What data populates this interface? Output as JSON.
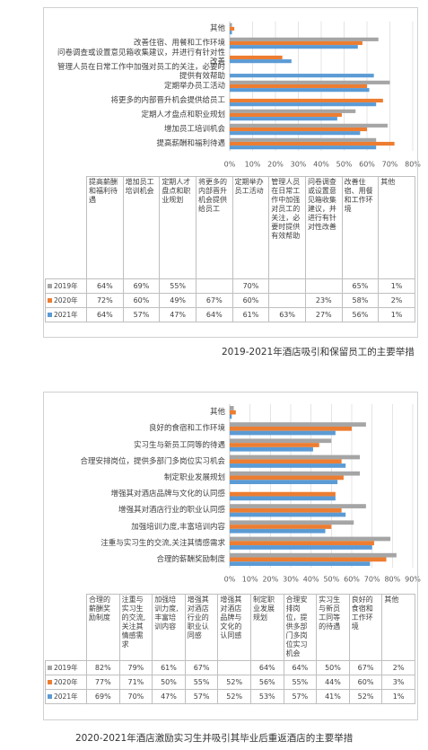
{
  "chart_data": [
    {
      "type": "bar",
      "orientation": "horizontal",
      "title": "2019-2021年酒店吸引和保留员工的主要举措",
      "categories": [
        "提高薪酬和福利待遇",
        "增加员工培训机会",
        "定期人才盘点和职业规划",
        "将更多的内部晋升机会提供给员工",
        "定期举办员工活动",
        "管理人员在日常工作中加强对员工的关注，必要时提供有效帮助",
        "问卷调查或设置意见箱收集建议，并进行有针对性改善",
        "改善住宿、用餐和工作环境",
        "其他"
      ],
      "series": [
        {
          "name": "2019年",
          "color": "#a5a5a5",
          "values": [
            64,
            69,
            55,
            null,
            70,
            null,
            null,
            65,
            1
          ],
          "value_labels": [
            "64%",
            "69%",
            "55%",
            null,
            "70%",
            null,
            null,
            "65%",
            "1%"
          ]
        },
        {
          "name": "2020年",
          "color": "#ed7d31",
          "values": [
            72,
            60,
            49,
            67,
            60,
            null,
            23,
            58,
            2
          ],
          "value_labels": [
            "72%",
            "60%",
            "49%",
            "67%",
            "60%",
            null,
            "23%",
            "58%",
            "2%"
          ]
        },
        {
          "name": "2021年",
          "color": "#5b9bd5",
          "values": [
            64,
            57,
            47,
            64,
            61,
            63,
            27,
            56,
            1
          ],
          "value_labels": [
            "64%",
            "57%",
            "47%",
            "64%",
            "61%",
            "63%",
            "27%",
            "56%",
            "1%"
          ]
        }
      ],
      "xlim": [
        0,
        80
      ],
      "xticks": [
        {
          "value": 0,
          "label": "0%"
        },
        {
          "value": 10,
          "label": "10%"
        },
        {
          "value": 20,
          "label": "20%"
        },
        {
          "value": 30,
          "label": "30%"
        },
        {
          "value": 40,
          "label": "40%"
        },
        {
          "value": 50,
          "label": "50%"
        },
        {
          "value": 60,
          "label": "60%"
        },
        {
          "value": 70,
          "label": "70%"
        },
        {
          "value": 80,
          "label": "80%"
        }
      ],
      "grid": true
    },
    {
      "type": "bar",
      "orientation": "horizontal",
      "title": "2020-2021年酒店激励实习生并吸引其毕业后重返酒店的主要举措",
      "categories": [
        "合理的薪酬奖励制度",
        "注重与实习生的交流,关注其情感需求",
        "加强培训力度,丰富培训内容",
        "增强其对酒店行业的职业认同感",
        "增强其对酒店品牌与文化的认同感",
        "制定职业发展规划",
        "合理安排岗位，提供多部门多岗位实习机会",
        "实习生与新员工同等的待遇",
        "良好的食宿和工作环境",
        "其他"
      ],
      "series": [
        {
          "name": "2019年",
          "color": "#a5a5a5",
          "values": [
            82,
            79,
            61,
            67,
            null,
            64,
            64,
            50,
            67,
            2
          ],
          "value_labels": [
            "82%",
            "79%",
            "61%",
            "67%",
            null,
            "64%",
            "64%",
            "50%",
            "67%",
            "2%"
          ]
        },
        {
          "name": "2020年",
          "color": "#ed7d31",
          "values": [
            77,
            71,
            50,
            55,
            52,
            56,
            55,
            44,
            60,
            3
          ],
          "value_labels": [
            "77%",
            "71%",
            "50%",
            "55%",
            "52%",
            "56%",
            "55%",
            "44%",
            "60%",
            "3%"
          ]
        },
        {
          "name": "2021年",
          "color": "#5b9bd5",
          "values": [
            69,
            70,
            47,
            57,
            52,
            53,
            57,
            41,
            52,
            1
          ],
          "value_labels": [
            "69%",
            "70%",
            "47%",
            "57%",
            "52%",
            "53%",
            "57%",
            "41%",
            "52%",
            "1%"
          ]
        }
      ],
      "xlim": [
        0,
        90
      ],
      "xticks": [
        {
          "value": 0,
          "label": "0%"
        },
        {
          "value": 10,
          "label": "10%"
        },
        {
          "value": 20,
          "label": "20%"
        },
        {
          "value": 30,
          "label": "30%"
        },
        {
          "value": 40,
          "label": "40%"
        },
        {
          "value": 50,
          "label": "50%"
        },
        {
          "value": 60,
          "label": "60%"
        },
        {
          "value": 70,
          "label": "70%"
        },
        {
          "value": 80,
          "label": "80%"
        },
        {
          "value": 90,
          "label": "90%"
        }
      ],
      "grid": true
    }
  ]
}
